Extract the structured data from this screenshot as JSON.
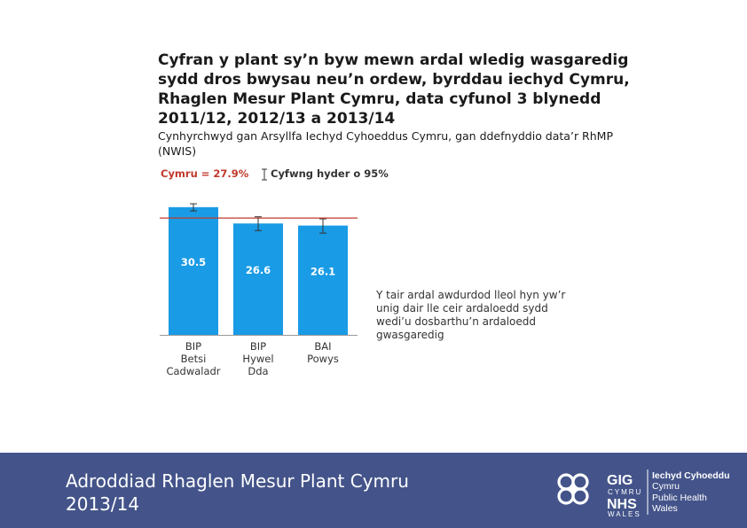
{
  "title": "Cyfran y plant sy’n byw mewn ardal wledig wasgaredig sydd dros bwysau neu’n ordew, byrddau iechyd Cymru, Rhaglen Mesur Plant Cymru, data cyfunol 3 blynedd 2011/12, 2012/13 a 2013/14",
  "subtitle": "Cynhyrchwyd gan Arsyllfa Iechyd Cyhoeddus Cymru, gan ddefnyddio data’r RhMP (NWIS)",
  "chart_data": {
    "type": "bar",
    "categories": [
      [
        "BIP",
        "Betsi",
        "Cadwaladr"
      ],
      [
        "BIP",
        "Hywel",
        "Dda"
      ],
      [
        "BAI",
        "Powys"
      ]
    ],
    "values": [
      30.5,
      26.6,
      26.1
    ],
    "data_labels": [
      "30.5",
      "26.6",
      "26.1"
    ],
    "ci_lower": [
      29.6,
      24.9,
      24.3
    ],
    "ci_upper": [
      31.3,
      28.2,
      27.7
    ],
    "reference_line": {
      "label": "Cymru = 27.9%",
      "value": 27.9,
      "color": "#c0392b"
    },
    "legend": [
      {
        "label": "Cymru = 27.9%",
        "kind": "line",
        "color": "#c0392b"
      },
      {
        "label": "Cyfwng hyder o 95%",
        "kind": "error-bar",
        "color": "#333333"
      }
    ],
    "annotation": "Y tair ardal awdurdod lleol hyn yw’r unig dair lle ceir ardaloedd sydd wedi’u dosbarthu’n ardaloedd gwasgaredig",
    "ylim": [
      0,
      33
    ],
    "bar_color": "#1a9be6",
    "grid": false,
    "legend_position": "top-left"
  },
  "footer": {
    "text": "Adroddiad Rhaglen Mesur Plant Cymru\n2013/14",
    "background": "#44548a"
  },
  "logo": {
    "gig": "GIG",
    "cymru": "CYMRU",
    "nhs": "NHS",
    "wales": "WALES",
    "org_line1": "Iechyd Cyhoeddus",
    "org_line2": "Cymru",
    "org_line3": "Public Health",
    "org_line4": "Wales"
  }
}
